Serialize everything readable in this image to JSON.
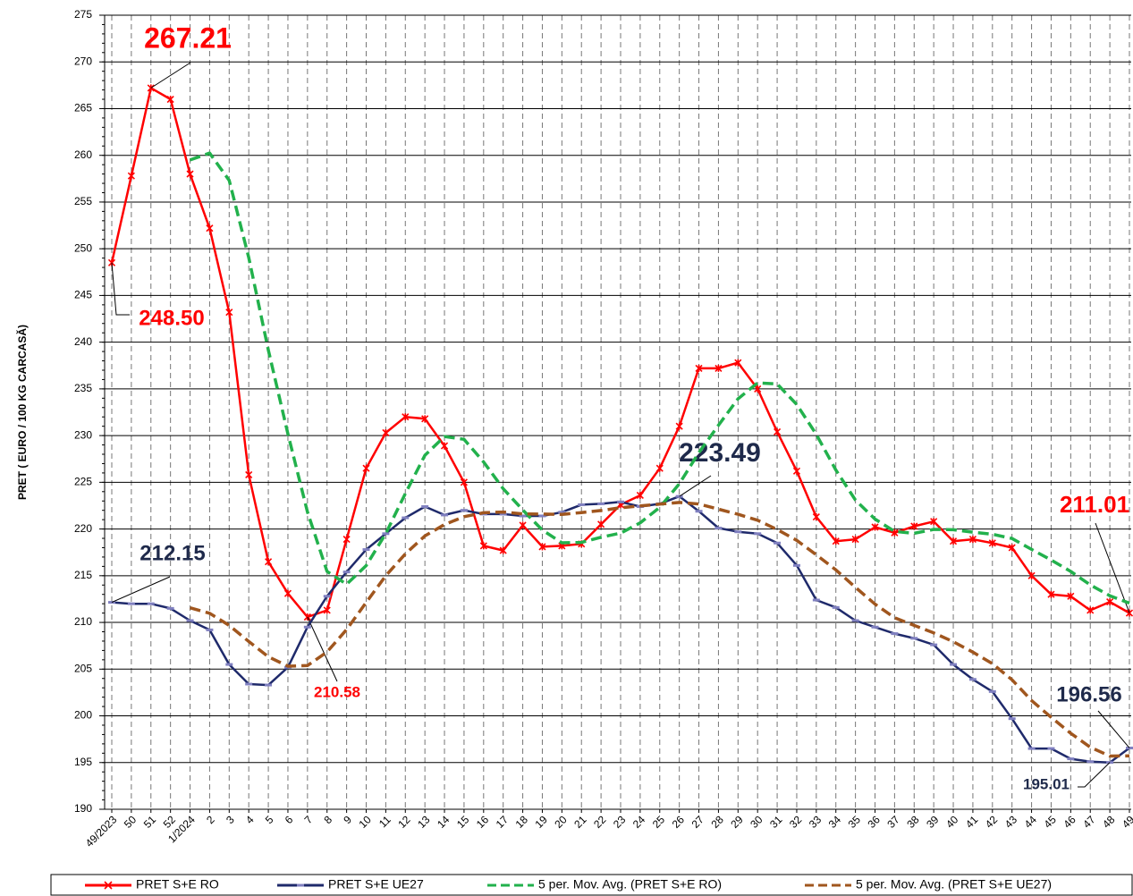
{
  "chart_data": {
    "type": "line",
    "y_label": "PRET ( EURO / 100 KG CARCASĂ)",
    "categories": [
      "49/2023",
      "50",
      "51",
      "52",
      "1/2024",
      "2",
      "3",
      "4",
      "5",
      "6",
      "7",
      "8",
      "9",
      "10",
      "11",
      "12",
      "13",
      "14",
      "15",
      "16",
      "17",
      "18",
      "19",
      "20",
      "21",
      "22",
      "23",
      "24",
      "25",
      "26",
      "27",
      "28",
      "29",
      "30",
      "31",
      "32",
      "33",
      "34",
      "35",
      "36",
      "37",
      "38",
      "39",
      "40",
      "41",
      "42",
      "43",
      "44",
      "45",
      "46",
      "47",
      "48",
      "49"
    ],
    "ylim": [
      190,
      275
    ],
    "yticks": [
      190,
      195,
      200,
      205,
      210,
      215,
      220,
      225,
      230,
      235,
      240,
      245,
      250,
      255,
      260,
      265,
      270,
      275
    ],
    "grid": true,
    "legend": "bottom",
    "series": [
      {
        "name": "PRET S+E RO",
        "color": "#ff0000",
        "marker": "x",
        "style": "solid",
        "values": [
          248.5,
          257.8,
          267.21,
          266.0,
          258.0,
          252.2,
          243.2,
          225.8,
          216.5,
          213.1,
          210.58,
          211.3,
          218.9,
          226.5,
          230.3,
          232.0,
          231.8,
          228.9,
          225.0,
          218.2,
          217.7,
          220.4,
          218.1,
          218.2,
          218.4,
          220.5,
          222.6,
          223.6,
          226.5,
          231.0,
          237.2,
          237.2,
          237.8,
          235.0,
          230.4,
          226.2,
          221.3,
          218.7,
          218.9,
          220.2,
          219.6,
          220.3,
          220.8,
          218.7,
          218.9,
          218.5,
          218.0,
          215.0,
          213.0,
          212.8,
          211.3,
          212.2,
          211.01
        ],
        "value_labels": [
          "248.50",
          null,
          "267.21",
          null,
          null,
          null,
          null,
          null,
          null,
          null,
          "210.58",
          null,
          null,
          null,
          null,
          null,
          null,
          null,
          null,
          null,
          null,
          null,
          null,
          null,
          null,
          null,
          null,
          null,
          null,
          null,
          null,
          null,
          null,
          null,
          null,
          null,
          null,
          null,
          null,
          null,
          null,
          null,
          null,
          null,
          null,
          null,
          null,
          null,
          null,
          null,
          null,
          null,
          "211.01"
        ]
      },
      {
        "name": "PRET S+E UE27",
        "color": "#1f2a6b",
        "marker": "dash",
        "style": "solid",
        "values": [
          212.15,
          212.0,
          212.0,
          211.5,
          210.2,
          209.2,
          205.5,
          203.4,
          203.3,
          205.2,
          209.5,
          212.8,
          215.4,
          217.8,
          219.5,
          221.2,
          222.4,
          221.5,
          222.0,
          221.6,
          221.6,
          221.4,
          221.4,
          221.8,
          222.6,
          222.7,
          222.9,
          222.4,
          222.7,
          223.49,
          221.9,
          220.1,
          219.7,
          219.5,
          218.5,
          216.1,
          212.4,
          211.6,
          210.2,
          209.5,
          208.8,
          208.3,
          207.6,
          205.5,
          203.9,
          202.6,
          199.7,
          196.5,
          196.5,
          195.4,
          195.1,
          195.01,
          196.56
        ],
        "value_labels": [
          "212.15",
          null,
          null,
          null,
          null,
          null,
          null,
          null,
          null,
          null,
          null,
          null,
          null,
          null,
          null,
          null,
          null,
          null,
          null,
          null,
          null,
          null,
          null,
          null,
          null,
          null,
          null,
          null,
          null,
          "223.49",
          null,
          null,
          null,
          null,
          null,
          null,
          null,
          null,
          null,
          null,
          null,
          null,
          null,
          null,
          null,
          null,
          null,
          null,
          null,
          null,
          null,
          "195.01",
          "196.56"
        ]
      },
      {
        "name": "5 per. Mov. Avg. (PRET S+E RO)",
        "color": "#22b14c",
        "marker": "none",
        "style": "dashed",
        "values": [
          null,
          null,
          null,
          null,
          259.5,
          260.24,
          257.32,
          249.04,
          239.14,
          230.16,
          221.84,
          215.46,
          214.08,
          216.08,
          219.52,
          223.8,
          227.9,
          229.9,
          229.6,
          227.18,
          224.32,
          222.04,
          219.88,
          218.52,
          218.56,
          219.12,
          219.56,
          220.66,
          222.32,
          224.84,
          228.18,
          231.1,
          233.94,
          235.64,
          235.52,
          233.32,
          230.14,
          226.32,
          223.1,
          221.06,
          219.74,
          219.54,
          219.96,
          219.92,
          219.66,
          219.44,
          218.98,
          217.82,
          216.68,
          215.46,
          214.02,
          212.86,
          212.06
        ]
      },
      {
        "name": "5 per. Mov. Avg. (PRET S+E UE27)",
        "color": "#a0561e",
        "marker": "none",
        "style": "dashed",
        "values": [
          null,
          null,
          null,
          null,
          211.57,
          210.98,
          209.68,
          207.96,
          206.32,
          205.32,
          205.38,
          206.84,
          209.24,
          212.14,
          215.0,
          217.34,
          219.26,
          220.48,
          221.32,
          221.74,
          221.82,
          221.62,
          221.6,
          221.56,
          221.76,
          221.98,
          222.28,
          222.48,
          222.66,
          222.84,
          222.68,
          222.12,
          221.58,
          220.94,
          219.94,
          218.78,
          217.24,
          215.62,
          213.76,
          211.96,
          210.5,
          209.68,
          208.88,
          207.94,
          206.82,
          205.58,
          203.86,
          201.64,
          199.84,
          198.14,
          196.64,
          195.7,
          195.71
        ]
      }
    ]
  }
}
